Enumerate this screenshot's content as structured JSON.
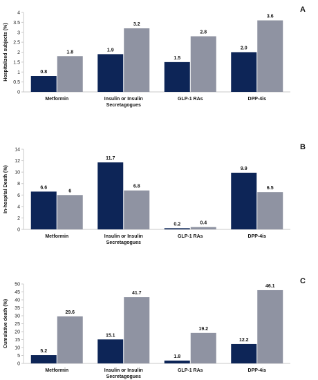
{
  "colors": {
    "series1": "#0d2557",
    "series2": "#8f93a2",
    "axis": "#c9c9c9"
  },
  "chart_data": [
    {
      "type": "bar",
      "panel_label": "A",
      "ylabel": "Hospitalized subjects (%)",
      "categories": [
        "Metformin",
        "Insulin or Insulin\nSecretagogues",
        "GLP-1 RAs",
        "DPP-4is"
      ],
      "ylim": [
        0,
        4
      ],
      "yticks": [
        0,
        0.5,
        1,
        1.5,
        2,
        2.5,
        3,
        3.5,
        4
      ],
      "ytick_labels": [
        "0",
        "0.5",
        "1",
        "1.5",
        "2",
        "2.5",
        "3",
        "3.5",
        "4"
      ],
      "grid": false,
      "series": [
        {
          "values": [
            0.8,
            1.9,
            1.5,
            2.0
          ],
          "labels": [
            "0.8",
            "1.9",
            "1.5",
            "2.0"
          ]
        },
        {
          "values": [
            1.8,
            3.2,
            2.8,
            3.6
          ],
          "labels": [
            "1.8",
            "3.2",
            "2.8",
            "3.6"
          ]
        }
      ]
    },
    {
      "type": "bar",
      "panel_label": "B",
      "ylabel": "In-hospital Death (%)",
      "categories": [
        "Metformin",
        "Insulin or Insulin\nSecretagogues",
        "GLP-1 RAs",
        "DPP-4is"
      ],
      "ylim": [
        0,
        14
      ],
      "yticks": [
        0,
        2,
        4,
        6,
        8,
        10,
        12,
        14
      ],
      "ytick_labels": [
        "0",
        "2",
        "4",
        "6",
        "8",
        "10",
        "12",
        "14"
      ],
      "grid": false,
      "series": [
        {
          "values": [
            6.6,
            11.7,
            0.2,
            9.9
          ],
          "labels": [
            "6.6",
            "11.7",
            "0.2",
            "9.9"
          ]
        },
        {
          "values": [
            6,
            6.8,
            0.4,
            6.5
          ],
          "labels": [
            "6",
            "6.8",
            "0.4",
            "6.5"
          ]
        }
      ]
    },
    {
      "type": "bar",
      "panel_label": "C",
      "ylabel": "Cumulative death (%)",
      "categories": [
        "Metformin",
        "Insulin or Insulin\nSecretagogues",
        "GLP-1 RAs",
        "DPP-4is"
      ],
      "ylim": [
        0,
        50
      ],
      "yticks": [
        0,
        5,
        10,
        15,
        20,
        25,
        30,
        35,
        40,
        45,
        50
      ],
      "ytick_labels": [
        "0",
        "5",
        "10",
        "15",
        "20",
        "25",
        "30",
        "35",
        "40",
        "45",
        "50"
      ],
      "grid": false,
      "series": [
        {
          "values": [
            5.2,
            15.1,
            1.8,
            12.2
          ],
          "labels": [
            "5.2",
            "15.1",
            "1.8",
            "12.2"
          ]
        },
        {
          "values": [
            29.6,
            41.7,
            19.2,
            46.1
          ],
          "labels": [
            "29.6",
            "41.7",
            "19.2",
            "46.1"
          ]
        }
      ]
    }
  ]
}
